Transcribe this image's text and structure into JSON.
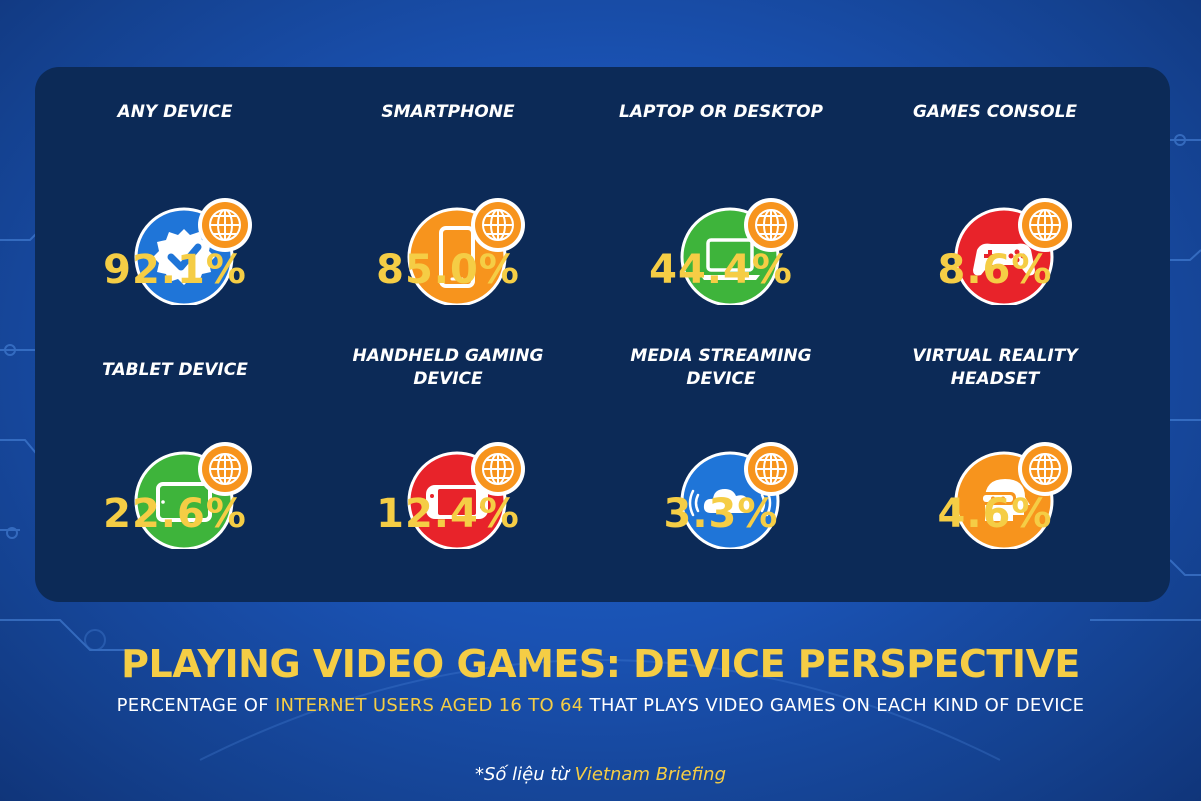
{
  "chart_data": {
    "type": "table",
    "title": "PLAYING VIDEO GAMES: DEVICE PERSPECTIVE",
    "subtitle_parts": [
      "PERCENTAGE OF ",
      "INTERNET USERS AGED 16 TO 64",
      " THAT PLAYS VIDEO GAMES ON EACH KIND OF DEVICE"
    ],
    "unit": "%",
    "categories": [
      "ANY DEVICE",
      "SMARTPHONE",
      "LAPTOP OR DESKTOP",
      "GAMES CONSOLE",
      "TABLET DEVICE",
      "HANDHELD GAMING DEVICE",
      "MEDIA STREAMING DEVICE",
      "VIRTUAL REALITY HEADSET"
    ],
    "values": [
      92.1,
      85.0,
      44.4,
      8.6,
      22.6,
      12.4,
      3.3,
      4.6
    ]
  },
  "cards": [
    {
      "label": "ANY DEVICE",
      "value": "92.1%",
      "icon": "verified-badge-icon",
      "color": "#1f75d8"
    },
    {
      "label": "SMARTPHONE",
      "value": "85.0%",
      "icon": "smartphone-icon",
      "color": "#f7941d"
    },
    {
      "label": "LAPTOP OR DESKTOP",
      "value": "44.4%",
      "icon": "laptop-icon",
      "color": "#3eb43b"
    },
    {
      "label": "GAMES CONSOLE",
      "value": "8.6%",
      "icon": "gamepad-icon",
      "color": "#e8232a"
    },
    {
      "label": "TABLET DEVICE",
      "value": "22.6%",
      "icon": "tablet-icon",
      "color": "#3eb43b"
    },
    {
      "label": "HANDHELD GAMING DEVICE",
      "value": "12.4%",
      "icon": "handheld-console-icon",
      "color": "#e8232a"
    },
    {
      "label": "MEDIA STREAMING DEVICE",
      "value": "3.3%",
      "icon": "cloud-streaming-icon",
      "color": "#1f75d8"
    },
    {
      "label": "VIRTUAL REALITY HEADSET",
      "value": "4.6%",
      "icon": "vr-headset-icon",
      "color": "#f7941d"
    }
  ],
  "globe_badge_color": "#f7941d",
  "source": {
    "prefix": "*Số liệu từ ",
    "name": "Vietnam Briefing"
  }
}
